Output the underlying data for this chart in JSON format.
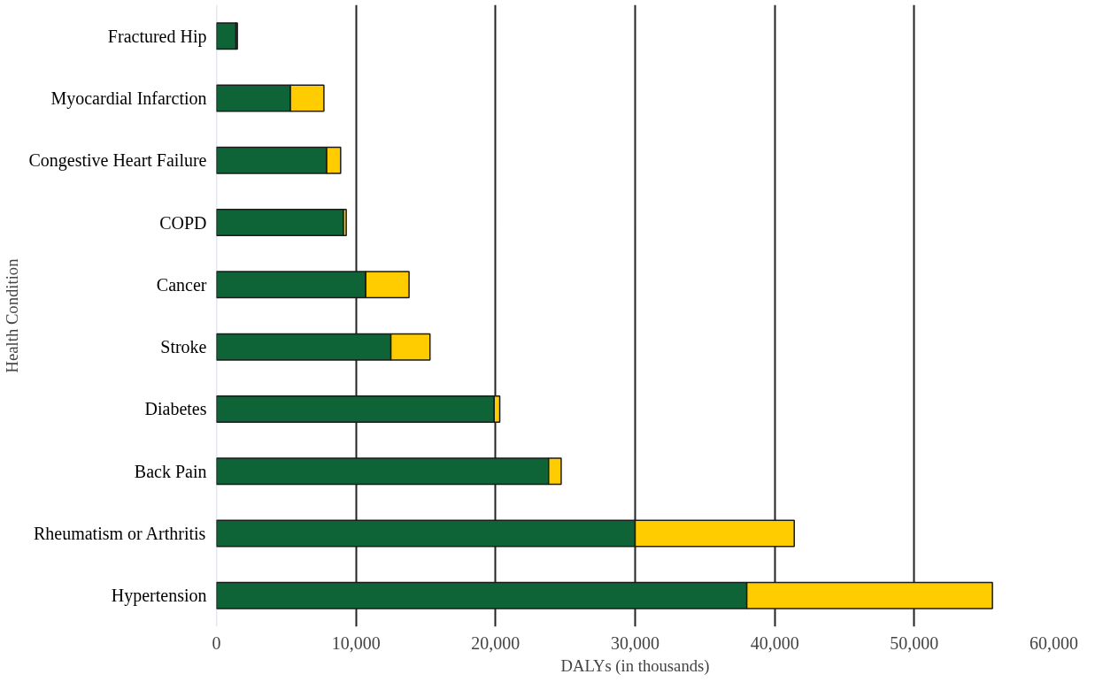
{
  "chart_data": {
    "type": "bar",
    "orientation": "horizontal",
    "stacked": true,
    "xlabel": "DALYs (in thousands)",
    "ylabel": "Health Condition",
    "categories": [
      "Fractured Hip",
      "Myocardial Infarction",
      "Congestive Heart Failure",
      "COPD",
      "Cancer",
      "Stroke",
      "Diabetes",
      "Back Pain",
      "Rheumatism or Arthritis",
      "Hypertension"
    ],
    "series": [
      {
        "color": "#0f6437",
        "values": [
          1400,
          5300,
          7900,
          9100,
          10700,
          12500,
          19900,
          23800,
          30000,
          38000
        ]
      },
      {
        "color": "#ffcc00",
        "values": [
          100,
          2400,
          1000,
          200,
          3100,
          2800,
          400,
          900,
          11400,
          17600
        ]
      }
    ],
    "xlim": [
      0,
      60000
    ],
    "xticks": [
      {
        "value": 0,
        "label": "0"
      },
      {
        "value": 10000,
        "label": "10,000"
      },
      {
        "value": 20000,
        "label": "20,000"
      },
      {
        "value": 30000,
        "label": "30,000"
      },
      {
        "value": 40000,
        "label": "40,000"
      },
      {
        "value": 50000,
        "label": "50,000"
      },
      {
        "value": 60000,
        "label": "60,000"
      }
    ],
    "grid": "x"
  }
}
